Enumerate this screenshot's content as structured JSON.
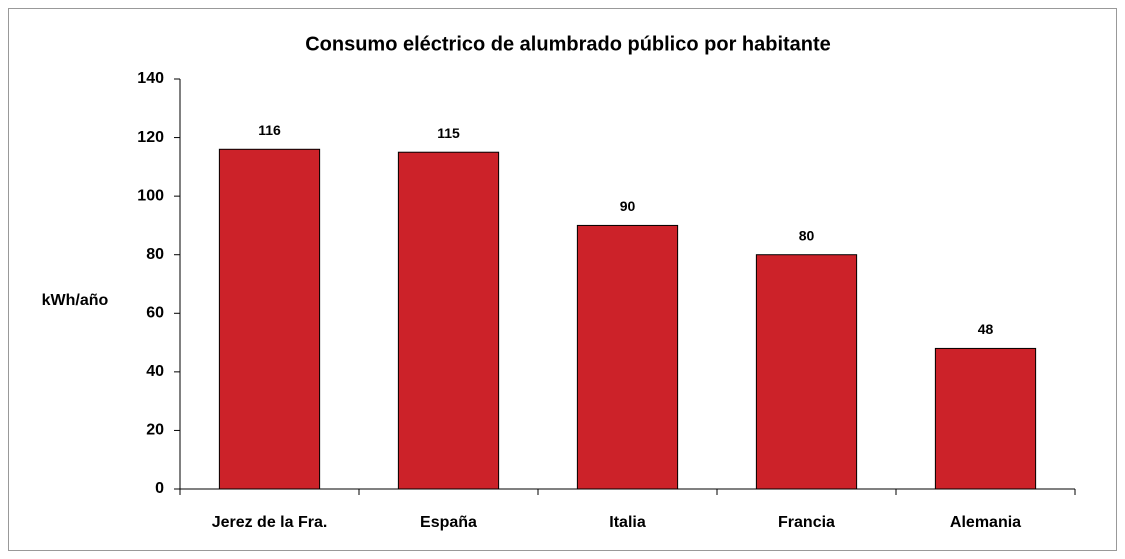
{
  "chart_data": {
    "type": "bar",
    "title": "Consumo eléctrico de alumbrado público por habitante",
    "y_label": "kWh/año",
    "categories": [
      "Jerez de la Fra.",
      "España",
      "Italia",
      "Francia",
      "Alemania"
    ],
    "values": [
      116,
      115,
      90,
      80,
      48
    ],
    "color": "#cc2229",
    "ylim": [
      0,
      140
    ],
    "yticks": [
      0,
      20,
      40,
      60,
      80,
      100,
      120,
      140
    ],
    "grid": false
  }
}
